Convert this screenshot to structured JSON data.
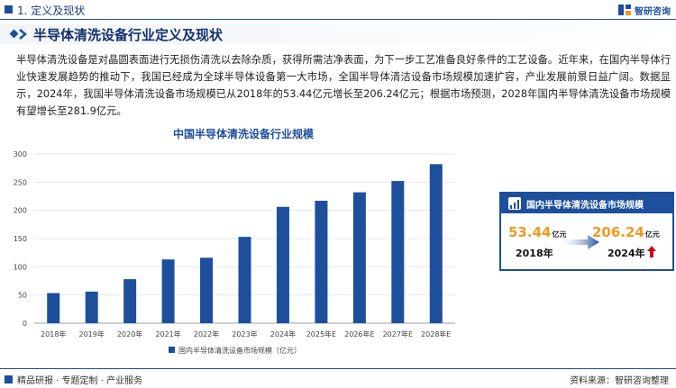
{
  "header": {
    "section": "1. 定义及现状",
    "brand": "智研咨询"
  },
  "banner": {
    "title": "半导体清洗设备行业定义及现状"
  },
  "intro": "半导体清洗设备是对晶圆表面进行无损伤清洗以去除杂质，获得所需洁净表面，为下一步工艺准备良好条件的工艺设备。近年来，在国内半导体行业快速发展趋势的推动下，我国已经成为全球半导体设备第一大市场，全国半导体清洁设备市场规模加速扩容，产业发展前景日益广阔。数据显示，2024年，我国半导体清洗设备市场规模已从2018年的53.44亿元增长至206.24亿元；根据市场预测，2028年国内半导体清洗设备市场规模有望增长至281.9亿元。",
  "colors": {
    "bar": "#1d4f9c",
    "accent": "#f29a1f",
    "arrow_up": "#d0021b"
  },
  "chart_data": {
    "type": "bar",
    "title": "中国半导体清洗设备行业规模",
    "categories": [
      "2018年",
      "2019年",
      "2020年",
      "2021年",
      "2022年",
      "2023年",
      "2024年",
      "2025年E",
      "2026年E",
      "2027年E",
      "2028年E"
    ],
    "series": [
      {
        "name": "国内半导体清洗设备市场规模（亿元）",
        "values": [
          53.44,
          56,
          78,
          113,
          116,
          153,
          206.24,
          217,
          232,
          252,
          281.9
        ]
      }
    ],
    "ylim": [
      0,
      300
    ],
    "yticks": [
      0,
      50,
      100,
      150,
      200,
      250,
      300
    ],
    "legend": "bottom",
    "grid": true
  },
  "card": {
    "title": "国内半导体清洗设备市场规模",
    "from_value": "53.44",
    "to_value": "206.24",
    "unit": "亿元",
    "from_year": "2018年",
    "to_year": "2024年"
  },
  "footer": {
    "slogan": "精品研报 · 专题定制 · 产业服务",
    "source": "资料来源：智研咨询整理"
  }
}
